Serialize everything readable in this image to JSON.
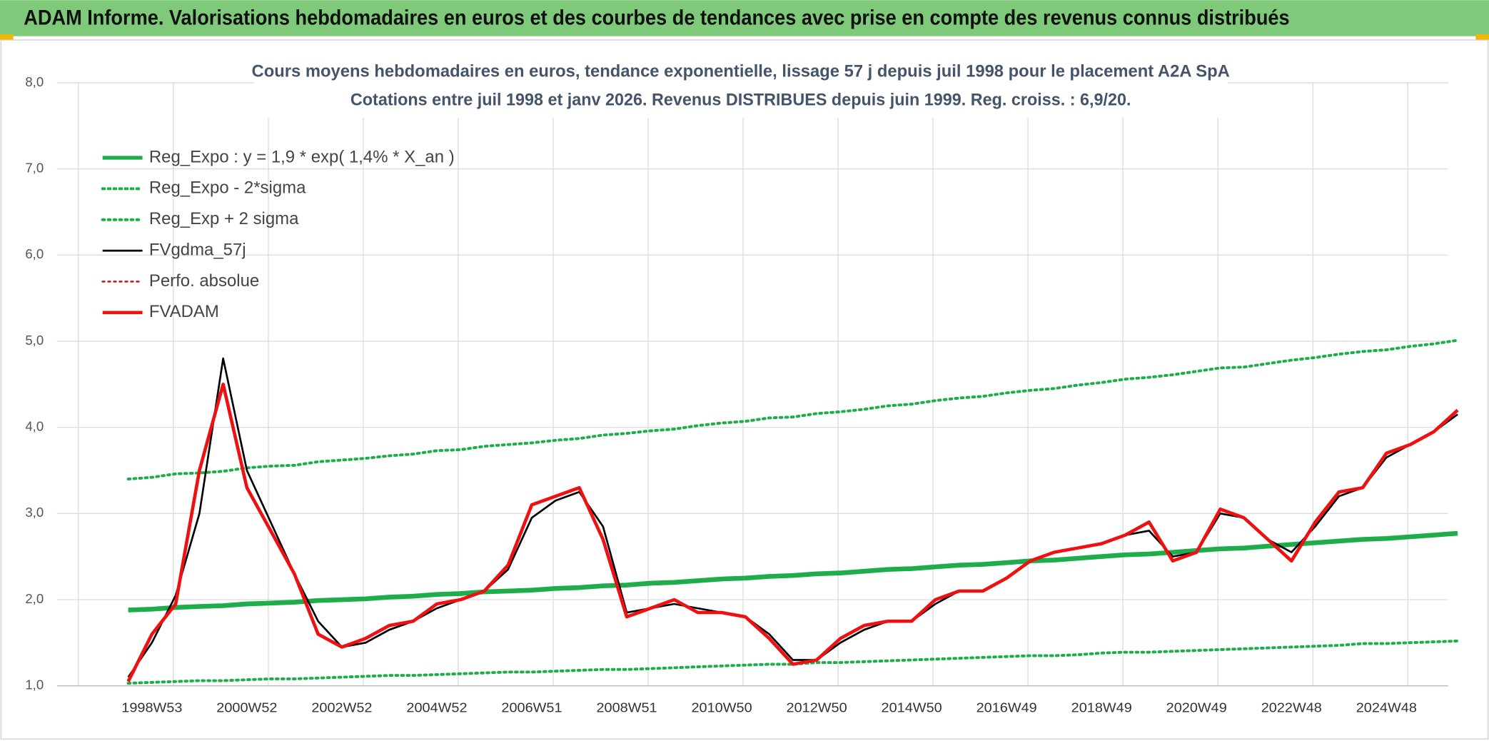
{
  "header": {
    "title": "ADAM Informe. Valorisations hebdomadaires en euros et des courbes de tendances avec prise en compte des revenus connus distribués"
  },
  "chart_data": {
    "type": "line",
    "title": "Cours moyens hebdomadaires en euros, tendance exponentielle, lissage 57 j depuis juil 1998 pour le placement A2A SpA",
    "subtitle": "Cotations entre juil 1998 et janv 2026. Revenus DISTRIBUES depuis juin 1999. Reg. croiss. : 6,9/20.",
    "categories": [
      null,
      "1998W53",
      null,
      null,
      null,
      "2000W52",
      null,
      null,
      null,
      "2002W52",
      null,
      null,
      null,
      "2004W52",
      null,
      null,
      null,
      "2006W51",
      null,
      null,
      null,
      "2008W51",
      null,
      null,
      null,
      "2010W50",
      null,
      null,
      null,
      "2012W50",
      null,
      null,
      null,
      "2014W50",
      null,
      null,
      null,
      "2016W49",
      null,
      null,
      null,
      "2018W49",
      null,
      null,
      null,
      "2020W49",
      null,
      null,
      null,
      "2022W48",
      null,
      null,
      null,
      "2024W48",
      null,
      null,
      null
    ],
    "ylim": [
      1,
      8
    ],
    "yticks": [
      {
        "value": 1,
        "label": "1,0"
      },
      {
        "value": 2,
        "label": "2,0"
      },
      {
        "value": 3,
        "label": "3,0"
      },
      {
        "value": 4,
        "label": "4,0"
      },
      {
        "value": 5,
        "label": "5,0"
      },
      {
        "value": 6,
        "label": "6,0"
      },
      {
        "value": 7,
        "label": "7,0"
      },
      {
        "value": 8,
        "label": "8,0"
      }
    ],
    "grid": true,
    "legend": "top-left",
    "series": [
      {
        "name": "Reg_Expo : y = 1,9 * exp( 1,4% *  X_an )",
        "color": "#1fad4b",
        "dash": "solid",
        "values": [
          1.88,
          1.89,
          1.91,
          1.92,
          1.93,
          1.95,
          1.96,
          1.97,
          1.99,
          2.0,
          2.01,
          2.03,
          2.04,
          2.06,
          2.07,
          2.09,
          2.1,
          2.11,
          2.13,
          2.14,
          2.16,
          2.17,
          2.19,
          2.2,
          2.22,
          2.24,
          2.25,
          2.27,
          2.28,
          2.3,
          2.31,
          2.33,
          2.35,
          2.36,
          2.38,
          2.4,
          2.41,
          2.43,
          2.45,
          2.46,
          2.48,
          2.5,
          2.52,
          2.53,
          2.55,
          2.57,
          2.59,
          2.6,
          2.62,
          2.64,
          2.66,
          2.68,
          2.7,
          2.71,
          2.73,
          2.75,
          2.77
        ]
      },
      {
        "name": "Reg_Expo - 2*sigma",
        "color": "#1fad4b",
        "dash": "dotted",
        "values": [
          1.03,
          1.04,
          1.05,
          1.06,
          1.06,
          1.07,
          1.08,
          1.08,
          1.09,
          1.1,
          1.11,
          1.12,
          1.12,
          1.13,
          1.14,
          1.15,
          1.16,
          1.16,
          1.17,
          1.18,
          1.19,
          1.19,
          1.2,
          1.21,
          1.22,
          1.23,
          1.24,
          1.25,
          1.25,
          1.27,
          1.27,
          1.28,
          1.29,
          1.3,
          1.31,
          1.32,
          1.33,
          1.34,
          1.35,
          1.35,
          1.36,
          1.38,
          1.39,
          1.39,
          1.4,
          1.41,
          1.42,
          1.43,
          1.44,
          1.45,
          1.46,
          1.47,
          1.49,
          1.49,
          1.5,
          1.51,
          1.52
        ]
      },
      {
        "name": "Reg_Exp + 2 sigma",
        "color": "#1fad4b",
        "dash": "dotted",
        "values": [
          3.4,
          3.42,
          3.46,
          3.47,
          3.49,
          3.53,
          3.55,
          3.56,
          3.6,
          3.62,
          3.64,
          3.67,
          3.69,
          3.73,
          3.74,
          3.78,
          3.8,
          3.82,
          3.85,
          3.87,
          3.91,
          3.93,
          3.96,
          3.98,
          4.02,
          4.05,
          4.07,
          4.11,
          4.12,
          4.16,
          4.18,
          4.21,
          4.25,
          4.27,
          4.31,
          4.34,
          4.36,
          4.4,
          4.43,
          4.45,
          4.49,
          4.52,
          4.56,
          4.58,
          4.61,
          4.65,
          4.69,
          4.7,
          4.74,
          4.78,
          4.81,
          4.85,
          4.88,
          4.9,
          4.94,
          4.97,
          5.01
        ]
      },
      {
        "name": "FVgdma_57j",
        "color": "#000000",
        "dash": "solid",
        "values": [
          1.1,
          1.5,
          2.05,
          3.0,
          4.8,
          3.5,
          2.9,
          2.3,
          1.75,
          1.45,
          1.5,
          1.65,
          1.75,
          1.9,
          2.0,
          2.1,
          2.35,
          2.95,
          3.15,
          3.25,
          2.85,
          1.85,
          1.9,
          1.95,
          1.9,
          1.85,
          1.8,
          1.6,
          1.3,
          1.3,
          1.5,
          1.65,
          1.75,
          1.75,
          1.95,
          2.1,
          2.1,
          2.25,
          2.45,
          2.55,
          2.6,
          2.65,
          2.75,
          2.8,
          2.5,
          2.55,
          3.0,
          2.95,
          2.7,
          2.55,
          2.85,
          3.2,
          3.3,
          3.65,
          3.8,
          3.95,
          4.15
        ]
      },
      {
        "name": "Perfo. absolue",
        "color": "#e0141b",
        "dash": "dotted",
        "values": [
          null,
          null,
          null,
          null,
          null,
          null,
          null,
          null,
          null,
          null,
          null,
          null,
          null,
          null,
          null,
          null,
          null,
          null,
          null,
          null,
          null,
          null,
          null,
          null,
          null,
          null,
          null,
          null,
          null,
          null,
          null,
          null,
          null,
          null,
          null,
          null,
          null,
          null,
          null,
          null,
          null,
          null,
          null,
          null,
          null,
          null,
          null,
          null,
          null,
          null,
          null,
          null,
          null,
          null,
          null,
          null,
          null
        ]
      },
      {
        "name": "FVADAM",
        "color": "#ee1111",
        "dash": "solid",
        "values": [
          1.05,
          1.6,
          1.95,
          3.5,
          4.5,
          3.3,
          2.8,
          2.3,
          1.6,
          1.45,
          1.55,
          1.7,
          1.75,
          1.95,
          2.0,
          2.1,
          2.4,
          3.1,
          3.2,
          3.3,
          2.7,
          1.8,
          1.9,
          2.0,
          1.85,
          1.85,
          1.8,
          1.55,
          1.25,
          1.3,
          1.55,
          1.7,
          1.75,
          1.75,
          2.0,
          2.1,
          2.1,
          2.25,
          2.45,
          2.55,
          2.6,
          2.65,
          2.75,
          2.9,
          2.45,
          2.55,
          3.05,
          2.95,
          2.7,
          2.45,
          2.9,
          3.25,
          3.3,
          3.7,
          3.8,
          3.95,
          4.2
        ]
      }
    ]
  }
}
